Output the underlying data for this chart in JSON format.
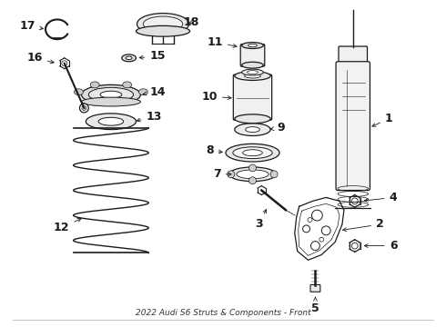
{
  "title": "2022 Audi S6 Struts & Components - Front",
  "bg_color": "#ffffff",
  "line_color": "#1a1a1a",
  "fig_w": 4.9,
  "fig_h": 3.6,
  "dpi": 100
}
